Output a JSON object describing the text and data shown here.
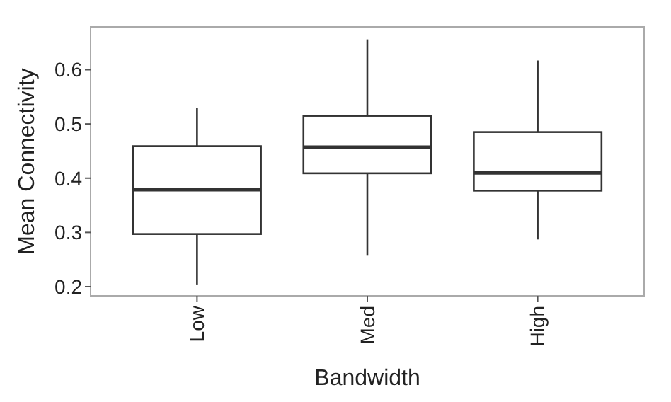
{
  "chart_data": {
    "type": "box",
    "xlabel": "Bandwidth",
    "ylabel": "Mean Connectivity",
    "categories": [
      "Low",
      "Med",
      "High"
    ],
    "boxes": [
      {
        "low": 0.204,
        "q1": 0.297,
        "median": 0.379,
        "q3": 0.459,
        "high": 0.53
      },
      {
        "low": 0.257,
        "q1": 0.409,
        "median": 0.457,
        "q3": 0.515,
        "high": 0.656
      },
      {
        "low": 0.287,
        "q1": 0.377,
        "median": 0.41,
        "q3": 0.485,
        "high": 0.617
      }
    ],
    "ylim": [
      0.183,
      0.679
    ],
    "yticks": [
      0.2,
      0.3,
      0.4,
      0.5,
      0.6
    ],
    "grid": false
  }
}
